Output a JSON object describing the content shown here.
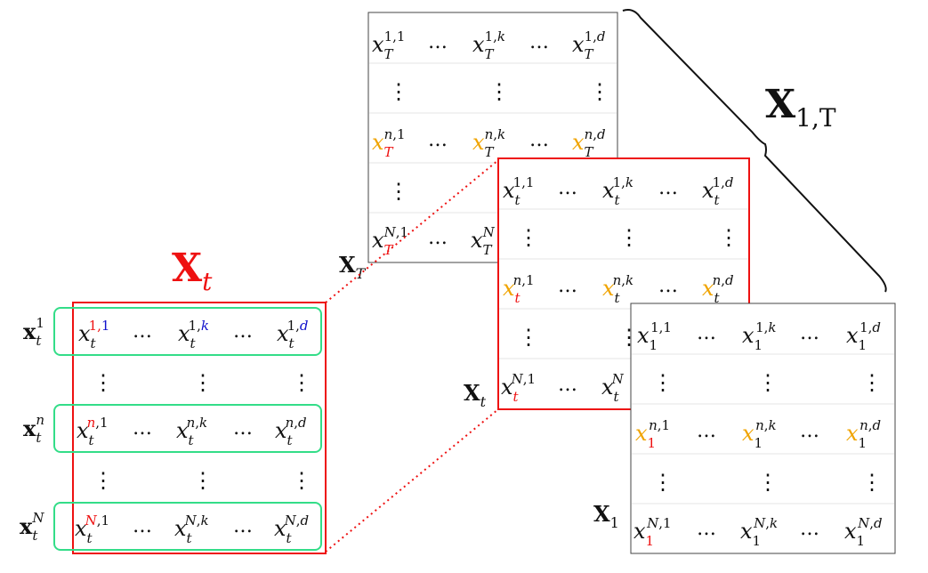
{
  "labels": {
    "title_xt_sym": "X",
    "title_xt_sub": "t",
    "title_x1T_sym": "X",
    "title_x1T_sub": "1,T",
    "mat_T_sym": "X",
    "mat_T_sub": "T",
    "mat_t_sym": "X",
    "mat_t_sub": "t",
    "mat_1_sym": "X",
    "mat_1_sub": "1"
  },
  "row_vectors": [
    {
      "sym": "x",
      "sub": "t",
      "sup": "1"
    },
    {
      "sym": "x",
      "sub": "t",
      "sup": "n"
    },
    {
      "sym": "x",
      "sub": "t",
      "sup": "N"
    }
  ],
  "dots": {
    "horizontal": "…",
    "vertical": "⋮"
  },
  "matrices": {
    "detail": {
      "rows": [
        [
          {
            "b": "x",
            "sub": "t",
            "sup1": "1",
            "sup2": "1"
          },
          {
            "b": "x",
            "sub": "t",
            "sup1": "1",
            "sup2": "k"
          },
          {
            "b": "x",
            "sub": "t",
            "sup1": "1",
            "sup2": "d"
          }
        ],
        [
          {
            "b": "x",
            "sub": "t",
            "sup1": "n",
            "sup2": "1"
          },
          {
            "b": "x",
            "sub": "t",
            "sup1": "n",
            "sup2": "k"
          },
          {
            "b": "x",
            "sub": "t",
            "sup1": "n",
            "sup2": "d"
          }
        ],
        [
          {
            "b": "x",
            "sub": "t",
            "sup1": "N",
            "sup2": "1"
          },
          {
            "b": "x",
            "sub": "t",
            "sup1": "N",
            "sup2": "k"
          },
          {
            "b": "x",
            "sub": "t",
            "sup1": "N",
            "sup2": "d"
          }
        ]
      ]
    },
    "back_T": {
      "rows": [
        [
          {
            "b": "x",
            "sub": "T",
            "sup1": "1",
            "sup2": "1"
          },
          {
            "b": "x",
            "sub": "T",
            "sup1": "1",
            "sup2": "k"
          },
          {
            "b": "x",
            "sub": "T",
            "sup1": "1",
            "sup2": "d"
          }
        ],
        [
          {
            "b": "x",
            "sub": "T",
            "sup1": "n",
            "sup2": "1"
          },
          {
            "b": "x",
            "sub": "T",
            "sup1": "n",
            "sup2": "k"
          },
          {
            "b": "x",
            "sub": "T",
            "sup1": "n",
            "sup2": "d"
          }
        ],
        [
          {
            "b": "x",
            "sub": "T",
            "sup1": "N",
            "sup2": "1"
          },
          {
            "b": "x",
            "sub": "T",
            "sup1": "N",
            "sup2": "k"
          }
        ]
      ]
    },
    "middle_t": {
      "rows": [
        [
          {
            "b": "x",
            "sub": "t",
            "sup1": "1",
            "sup2": "1"
          },
          {
            "b": "x",
            "sub": "t",
            "sup1": "1",
            "sup2": "k"
          },
          {
            "b": "x",
            "sub": "t",
            "sup1": "1",
            "sup2": "d"
          }
        ],
        [
          {
            "b": "x",
            "sub": "t",
            "sup1": "n",
            "sup2": "1"
          },
          {
            "b": "x",
            "sub": "t",
            "sup1": "n",
            "sup2": "k"
          },
          {
            "b": "x",
            "sub": "t",
            "sup1": "n",
            "sup2": "d"
          }
        ],
        [
          {
            "b": "x",
            "sub": "t",
            "sup1": "N",
            "sup2": "1"
          },
          {
            "b": "x",
            "sub": "t",
            "sup1": "N",
            "sup2": ""
          }
        ]
      ]
    },
    "front_1": {
      "rows": [
        [
          {
            "b": "x",
            "sub": "1",
            "sup1": "1",
            "sup2": "1"
          },
          {
            "b": "x",
            "sub": "1",
            "sup1": "1",
            "sup2": "k"
          },
          {
            "b": "x",
            "sub": "1",
            "sup1": "1",
            "sup2": "d"
          }
        ],
        [
          {
            "b": "x",
            "sub": "1",
            "sup1": "n",
            "sup2": "1"
          },
          {
            "b": "x",
            "sub": "1",
            "sup1": "n",
            "sup2": "k"
          },
          {
            "b": "x",
            "sub": "1",
            "sup1": "n",
            "sup2": "d"
          }
        ],
        [
          {
            "b": "x",
            "sub": "1",
            "sup1": "N",
            "sup2": "1"
          },
          {
            "b": "x",
            "sub": "1",
            "sup1": "N",
            "sup2": "k"
          },
          {
            "b": "x",
            "sub": "1",
            "sup1": "N",
            "sup2": "d"
          }
        ]
      ]
    }
  },
  "colors": {
    "red": "#ee1111",
    "blue": "#1111cc",
    "orange": "#f0a400",
    "green": "#33dd88",
    "black": "#111111",
    "gridline": "#e6e6e6"
  }
}
